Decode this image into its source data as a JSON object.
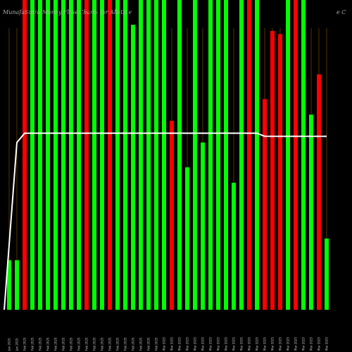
{
  "header": {
    "title": "MunafaSutra Money Flow Charts for Allstate",
    "suffix": "e C"
  },
  "chart_data": {
    "type": "bar",
    "title": "MunafaSutra Money Flow Charts for Allstate",
    "xlabel": "",
    "ylabel": "",
    "ylim": [
      0,
      100
    ],
    "colors": {
      "up": "#00ff00",
      "down": "#ff0000",
      "line": "#ffffff",
      "grid": "#8b5a00"
    },
    "categories": [
      "Jan 2025",
      "Jan 2025",
      "Feb 2025",
      "Feb 2025",
      "Feb 2025",
      "Feb 2025",
      "Feb 2025",
      "Feb 2025",
      "Feb 2025",
      "Feb 2025",
      "Feb 2025",
      "Feb 2025",
      "Feb 2025",
      "Feb 2025",
      "Feb 2025",
      "Feb 2025",
      "Feb 2025",
      "Feb 2025",
      "Feb 2025",
      "Feb 2025",
      "Mar 2025",
      "Mar 2025",
      "Mar 2025",
      "Mar 2025",
      "Mar 2025",
      "Mar 2025",
      "Mar 2025",
      "Mar 2025",
      "Mar 2025",
      "Mar 2025",
      "Mar 2025",
      "Mar 2025",
      "Mar 2025",
      "Mar 2025",
      "Mar 2025",
      "Mar 2025",
      "Mar 2025",
      "Mar 2025",
      "Mar 2025",
      "Mar 2025",
      "Mar 2025",
      "Mar 2025"
    ],
    "bars": [
      {
        "v": 16,
        "c": "up"
      },
      {
        "v": 16,
        "c": "up"
      },
      {
        "v": 100,
        "c": "down"
      },
      {
        "v": 100,
        "c": "up"
      },
      {
        "v": 100,
        "c": "up"
      },
      {
        "v": 100,
        "c": "up"
      },
      {
        "v": 100,
        "c": "up"
      },
      {
        "v": 100,
        "c": "up"
      },
      {
        "v": 100,
        "c": "up"
      },
      {
        "v": 100,
        "c": "up"
      },
      {
        "v": 100,
        "c": "down"
      },
      {
        "v": 100,
        "c": "up"
      },
      {
        "v": 100,
        "c": "up"
      },
      {
        "v": 100,
        "c": "down"
      },
      {
        "v": 100,
        "c": "up"
      },
      {
        "v": 100,
        "c": "up"
      },
      {
        "v": 92,
        "c": "up"
      },
      {
        "v": 100,
        "c": "up"
      },
      {
        "v": 100,
        "c": "up"
      },
      {
        "v": 100,
        "c": "up"
      },
      {
        "v": 100,
        "c": "up"
      },
      {
        "v": 61,
        "c": "down"
      },
      {
        "v": 100,
        "c": "up"
      },
      {
        "v": 46,
        "c": "up"
      },
      {
        "v": 100,
        "c": "up"
      },
      {
        "v": 54,
        "c": "up"
      },
      {
        "v": 100,
        "c": "up"
      },
      {
        "v": 100,
        "c": "up"
      },
      {
        "v": 100,
        "c": "up"
      },
      {
        "v": 41,
        "c": "up"
      },
      {
        "v": 100,
        "c": "up"
      },
      {
        "v": 100,
        "c": "down"
      },
      {
        "v": 100,
        "c": "up"
      },
      {
        "v": 68,
        "c": "down"
      },
      {
        "v": 90,
        "c": "down"
      },
      {
        "v": 89,
        "c": "down"
      },
      {
        "v": 100,
        "c": "up"
      },
      {
        "v": 100,
        "c": "down"
      },
      {
        "v": 100,
        "c": "up"
      },
      {
        "v": 63,
        "c": "up"
      },
      {
        "v": 76,
        "c": "down"
      },
      {
        "v": 23,
        "c": "up"
      }
    ],
    "line": {
      "values": [
        null,
        54,
        57,
        57,
        57,
        57,
        57,
        57,
        57,
        57,
        57,
        57,
        57,
        57,
        57,
        57,
        57,
        57,
        57,
        57,
        57,
        57,
        57,
        57,
        57,
        57,
        57,
        57,
        57,
        57,
        57,
        57,
        57,
        56,
        56,
        56,
        56,
        56,
        56,
        56,
        56,
        56
      ],
      "start_value": 0
    },
    "grid": true
  }
}
